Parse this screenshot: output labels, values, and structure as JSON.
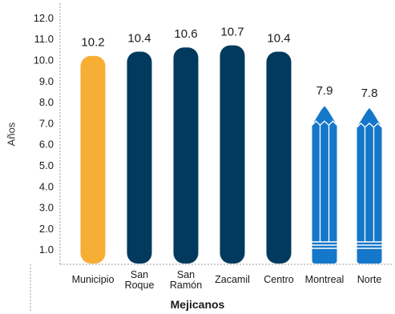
{
  "chart_data": {
    "type": "bar",
    "title": "",
    "xlabel": "Mejicanos",
    "ylabel": "Años",
    "ylim": [
      0,
      12.0
    ],
    "yticks": [
      "1.0",
      "2.0",
      "3.0",
      "4.0",
      "5.0",
      "6.0",
      "7.0",
      "8.0",
      "9.0",
      "10.0",
      "11.0",
      "12.0"
    ],
    "categories": [
      {
        "lines": [
          "Municipio"
        ]
      },
      {
        "lines": [
          "San",
          "Roque"
        ]
      },
      {
        "lines": [
          "San",
          "Ramón"
        ]
      },
      {
        "lines": [
          "Zacamil"
        ]
      },
      {
        "lines": [
          "Centro"
        ]
      },
      {
        "lines": [
          "Montreal"
        ]
      },
      {
        "lines": [
          "Norte"
        ]
      }
    ],
    "values": [
      10.2,
      10.4,
      10.6,
      10.7,
      10.4,
      7.9,
      7.8
    ],
    "value_labels": [
      "10.2",
      "10.4",
      "10.6",
      "10.7",
      "10.4",
      "7.9",
      "7.8"
    ],
    "bar_styles": [
      "rounded",
      "rounded",
      "rounded",
      "rounded",
      "rounded",
      "pencil",
      "pencil"
    ],
    "colors": [
      "#F7AE35",
      "#023A5E",
      "#023A5E",
      "#023A5E",
      "#023A5E",
      "#1477C9",
      "#1477C9"
    ],
    "grid": false
  }
}
